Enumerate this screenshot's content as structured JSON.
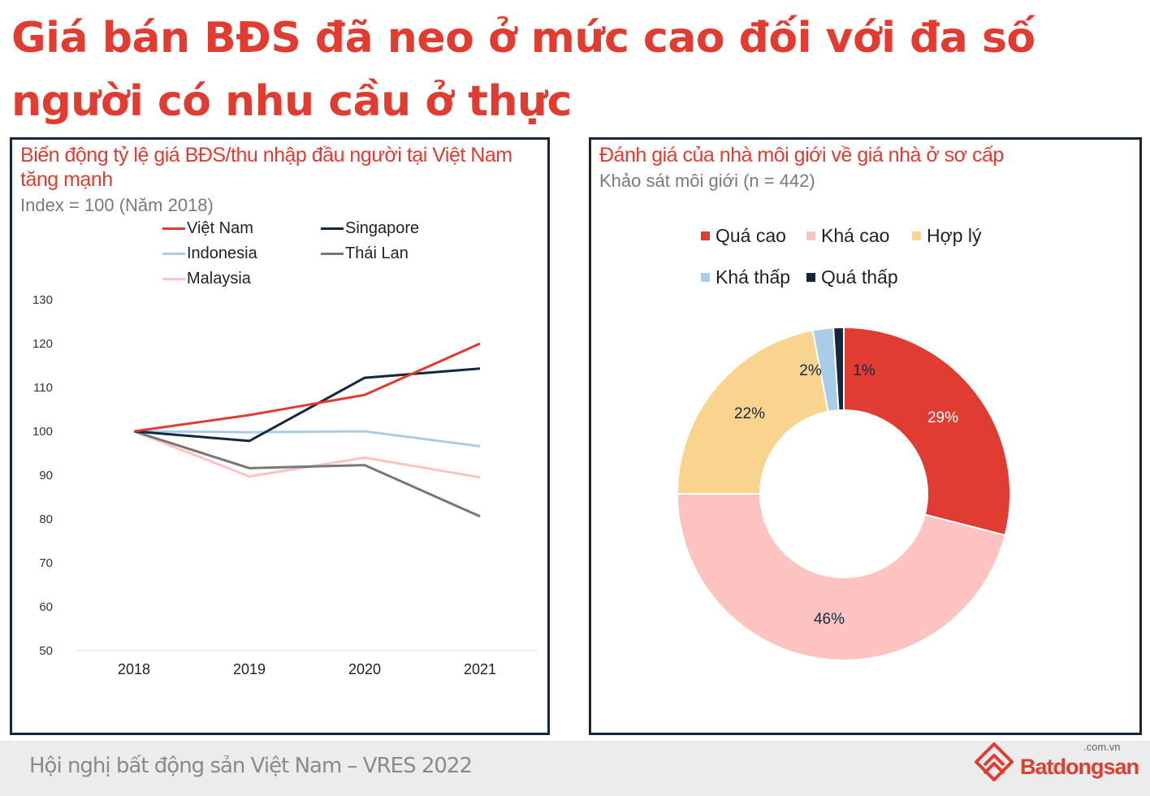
{
  "title": "Giá bán BĐS đã neo ở mức cao đối với đa số người có nhu cầu ở thực",
  "footer": {
    "text": "Hội nghị bất động sản Việt Nam – VRES 2022",
    "brand": "Batdongsan",
    "domain": ".com.vn"
  },
  "chart_data": [
    {
      "type": "line",
      "title": "Biến động tỷ lệ giá BĐS/thu nhập đầu người tại Việt Nam tăng mạnh",
      "subtitle": "Index = 100 (Năm 2018)",
      "categories": [
        "2018",
        "2019",
        "2020",
        "2021"
      ],
      "ylim": [
        50,
        130
      ],
      "yticks": [
        50,
        60,
        70,
        80,
        90,
        100,
        110,
        120,
        130
      ],
      "legend": "top",
      "grid": false,
      "series": [
        {
          "name": "Việt Nam",
          "color": "#e03c31",
          "values": [
            100,
            103.7,
            108.3,
            120
          ]
        },
        {
          "name": "Singapore",
          "color": "#14273e",
          "values": [
            100,
            97.8,
            112.2,
            114.3
          ]
        },
        {
          "name": "Indonesia",
          "color": "#a9cce8",
          "values": [
            100,
            99.8,
            100,
            96.6
          ]
        },
        {
          "name": "Thái Lan",
          "color": "#777777",
          "values": [
            100,
            91.6,
            92.3,
            80.6
          ]
        },
        {
          "name": "Malaysia",
          "color": "#fcc3c0",
          "values": [
            100,
            89.7,
            94,
            89.5
          ]
        }
      ]
    },
    {
      "type": "pie",
      "title": "Đánh giá của nhà môi giới về giá nhà ở sơ cấp",
      "subtitle": "Khảo sát môi giới (n = 442)",
      "donut": true,
      "legend": "top",
      "slices": [
        {
          "name": "Quá cao",
          "value": 29,
          "label": "29%",
          "color": "#e03c31"
        },
        {
          "name": "Khá cao",
          "value": 46,
          "label": "46%",
          "color": "#fcc3c0"
        },
        {
          "name": "Hợp lý",
          "value": 22,
          "label": "22%",
          "color": "#f9d48e"
        },
        {
          "name": "Khá thấp",
          "value": 2,
          "label": "2%",
          "color": "#a9cce8"
        },
        {
          "name": "Quá thấp",
          "value": 1,
          "label": "1%",
          "color": "#14273e"
        }
      ]
    }
  ]
}
